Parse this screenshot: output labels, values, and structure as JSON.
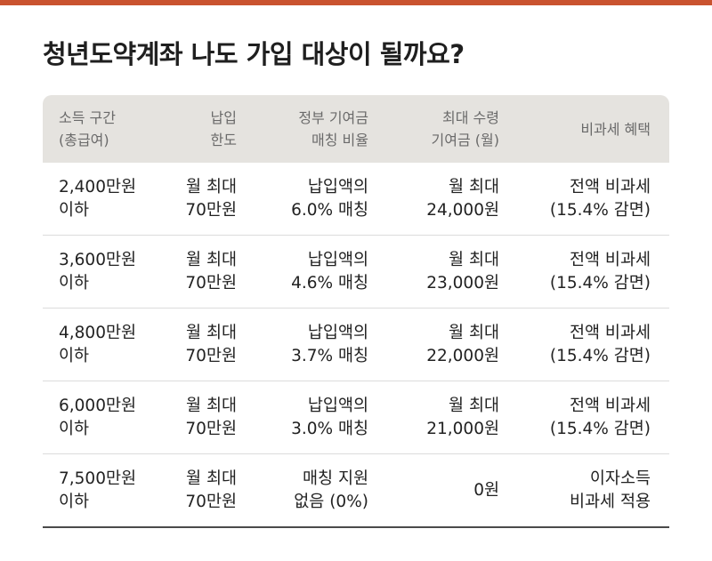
{
  "title": "청년도약계좌 나도 가입 대상이 될까요?",
  "table": {
    "headers": [
      "소득 구간\n(총급여)",
      "납입\n한도",
      "정부 기여금\n매칭 비율",
      "최대 수령\n기여금 (월)",
      "비과세 혜택"
    ],
    "rows": [
      [
        "2,400만원\n이하",
        "월 최대\n70만원",
        "납입액의\n6.0% 매칭",
        "월 최대\n24,000원",
        "전액 비과세\n(15.4% 감면)"
      ],
      [
        "3,600만원\n이하",
        "월 최대\n70만원",
        "납입액의\n4.6% 매칭",
        "월 최대\n23,000원",
        "전액 비과세\n(15.4% 감면)"
      ],
      [
        "4,800만원\n이하",
        "월 최대\n70만원",
        "납입액의\n3.7% 매칭",
        "월 최대\n22,000원",
        "전액 비과세\n(15.4% 감면)"
      ],
      [
        "6,000만원\n이하",
        "월 최대\n70만원",
        "납입액의\n3.0% 매칭",
        "월 최대\n21,000원",
        "전액 비과세\n(15.4% 감면)"
      ],
      [
        "7,500만원\n이하",
        "월 최대\n70만원",
        "매칭 지원\n없음 (0%)",
        "0원",
        "이자소득\n비과세 적용"
      ]
    ]
  },
  "colors": {
    "accent_bar": "#c9532f",
    "header_bg": "#e5e3df"
  }
}
